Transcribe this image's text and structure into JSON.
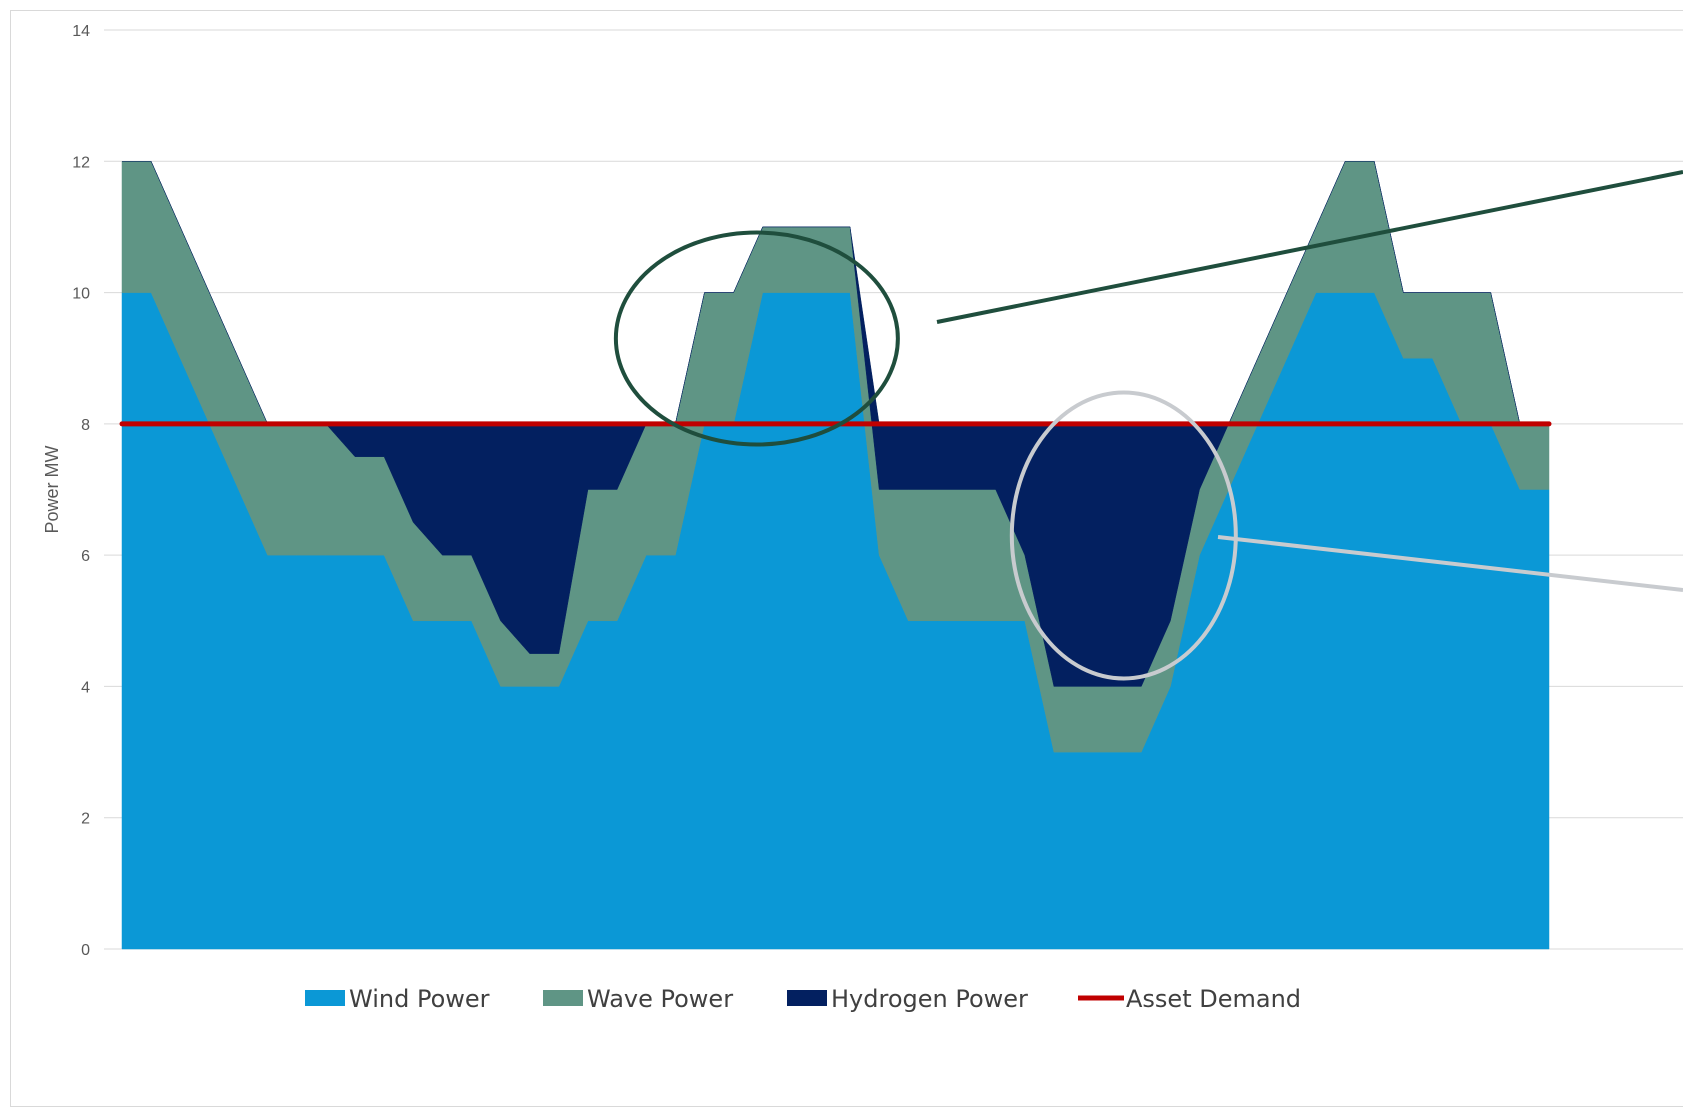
{
  "chart_data": {
    "type": "area",
    "stacked": true,
    "title": "",
    "xlabel": "",
    "ylabel": "Power MW",
    "ylim": [
      0,
      14
    ],
    "yticks": [
      0,
      2,
      4,
      6,
      8,
      10,
      12,
      14
    ],
    "grid": true,
    "legend_position": "bottom",
    "x": [
      0,
      1,
      2,
      3,
      4,
      5,
      6,
      7,
      8,
      9,
      10,
      11,
      12,
      13,
      14,
      15,
      16,
      17,
      18,
      19,
      20,
      21,
      22,
      23,
      24,
      25,
      26,
      27,
      28,
      29,
      30,
      31,
      32,
      33,
      34,
      35,
      36,
      37,
      38,
      39,
      40,
      41,
      42,
      43,
      44,
      45,
      46,
      47,
      48,
      49
    ],
    "series": [
      {
        "name": "Wind Power",
        "kind": "area",
        "color": "#0b98d6",
        "values": [
          10,
          10,
          9,
          8,
          7,
          6,
          6,
          6,
          6,
          6,
          5,
          5,
          5,
          4,
          4,
          4,
          5,
          5,
          6,
          6,
          8,
          8,
          10,
          10,
          10,
          10,
          6,
          5,
          5,
          5,
          5,
          5,
          3,
          3,
          3,
          3,
          4,
          6,
          7,
          8,
          9,
          10,
          10,
          10,
          9,
          9,
          8,
          8,
          7,
          7
        ]
      },
      {
        "name": "Wave Power",
        "kind": "area",
        "color": "#5f9585",
        "values": [
          2,
          2,
          2,
          2,
          2,
          2,
          2,
          2,
          1.5,
          1.5,
          1.5,
          1,
          1,
          1,
          0.5,
          0.5,
          2,
          2,
          2,
          2,
          2,
          2,
          1,
          1,
          1,
          1,
          1,
          2,
          2,
          2,
          2,
          1,
          1,
          1,
          1,
          1,
          1,
          1,
          1,
          1,
          1,
          1,
          2,
          2,
          1,
          1,
          2,
          2,
          1,
          1
        ]
      },
      {
        "name": "Hydrogen Power",
        "kind": "area",
        "color": "#032060",
        "values": [
          0,
          0,
          0,
          0,
          0,
          0,
          0,
          0,
          0.5,
          0.5,
          1.5,
          2,
          2,
          3,
          3.5,
          3.5,
          1,
          1,
          0,
          0,
          0,
          0,
          0,
          0,
          0,
          0,
          1,
          1,
          1,
          1,
          1,
          2,
          4,
          4,
          4,
          4,
          3,
          1,
          0,
          0,
          0,
          0,
          0,
          0,
          0,
          0,
          0,
          0,
          0,
          0
        ]
      },
      {
        "name": "Asset Demand",
        "kind": "line",
        "color": "#c00000",
        "values": [
          8,
          8,
          8,
          8,
          8,
          8,
          8,
          8,
          8,
          8,
          8,
          8,
          8,
          8,
          8,
          8,
          8,
          8,
          8,
          8,
          8,
          8,
          8,
          8,
          8,
          8,
          8,
          8,
          8,
          8,
          8,
          8,
          8,
          8,
          8,
          8,
          8,
          8,
          8,
          8,
          8,
          8,
          8,
          8,
          8,
          8,
          8,
          8,
          8,
          8
        ]
      }
    ]
  },
  "annotations": [
    {
      "name": "surplus-ellipse",
      "color": "#1f4e3d"
    },
    {
      "name": "deficit-ellipse",
      "color": "#c8cbcf"
    }
  ]
}
